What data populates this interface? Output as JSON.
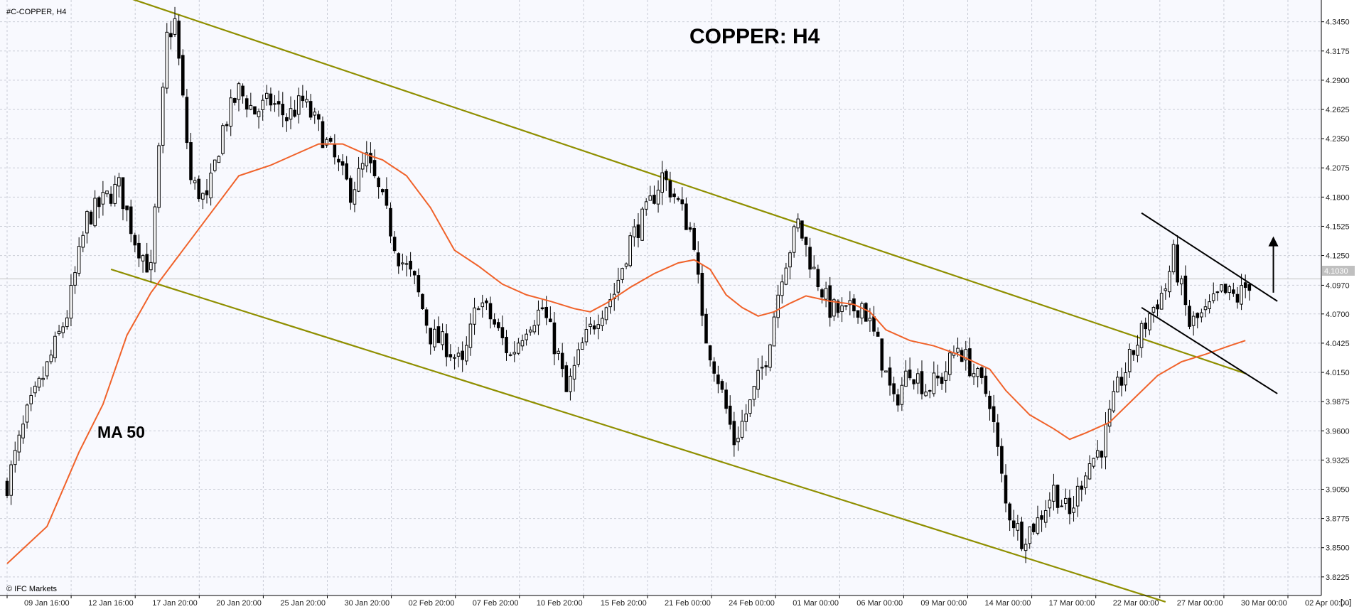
{
  "symbol_label": "#C-COPPER, H4",
  "watermark": "© IFC Markets",
  "corner_mark": "[...]",
  "annotations": {
    "title": "COPPER: H4",
    "ma_label": "MA 50"
  },
  "colors": {
    "background": "#f8f9fe",
    "grid": "#c9ccd6",
    "candle": "#000000",
    "ma": "#f0622a",
    "channel": "#8f8f00",
    "pattern": "#000000",
    "price_tag": "#c0c0c0",
    "bid_line": "#c0c0c0"
  },
  "chart_data": {
    "type": "candlestick",
    "title": "COPPER: H4",
    "ylim": [
      3.805,
      4.3655
    ],
    "y_ticks": [
      "4.3450",
      "4.3175",
      "4.2900",
      "4.2625",
      "4.2350",
      "4.2075",
      "4.1800",
      "4.1525",
      "4.1250",
      "4.0970",
      "4.0700",
      "4.0425",
      "4.0150",
      "3.9875",
      "3.9600",
      "3.9325",
      "3.9050",
      "3.8775",
      "3.8500",
      "3.8225"
    ],
    "x_ticks": [
      "09 Jan 16:00",
      "12 Jan 16:00",
      "17 Jan 20:00",
      "20 Jan 20:00",
      "25 Jan 20:00",
      "30 Jan 20:00",
      "02 Feb 20:00",
      "07 Feb 20:00",
      "10 Feb 20:00",
      "15 Feb 20:00",
      "21 Feb 00:00",
      "24 Feb 00:00",
      "01 Mar 00:00",
      "06 Mar 00:00",
      "09 Mar 00:00",
      "14 Mar 00:00",
      "17 Mar 00:00",
      "22 Mar 00:00",
      "27 Mar 00:00",
      "30 Mar 00:00",
      "02 Apr 00:00"
    ],
    "current_price": "4.1030",
    "close_path": [
      [
        0,
        3.91
      ],
      [
        5,
        3.975
      ],
      [
        10,
        4.02
      ],
      [
        15,
        4.07
      ],
      [
        20,
        4.16
      ],
      [
        25,
        4.18
      ],
      [
        28,
        4.19
      ],
      [
        32,
        4.14
      ],
      [
        36,
        4.11
      ],
      [
        40,
        4.33
      ],
      [
        42,
        4.345
      ],
      [
        46,
        4.195
      ],
      [
        50,
        4.175
      ],
      [
        54,
        4.245
      ],
      [
        58,
        4.28
      ],
      [
        62,
        4.26
      ],
      [
        66,
        4.27
      ],
      [
        70,
        4.255
      ],
      [
        74,
        4.27
      ],
      [
        78,
        4.245
      ],
      [
        82,
        4.215
      ],
      [
        86,
        4.185
      ],
      [
        90,
        4.215
      ],
      [
        94,
        4.175
      ],
      [
        98,
        4.125
      ],
      [
        102,
        4.1
      ],
      [
        106,
        4.05
      ],
      [
        110,
        4.04
      ],
      [
        114,
        4.02
      ],
      [
        118,
        4.085
      ],
      [
        122,
        4.06
      ],
      [
        126,
        4.03
      ],
      [
        130,
        4.06
      ],
      [
        134,
        4.075
      ],
      [
        138,
        4.03
      ],
      [
        140,
        3.995
      ],
      [
        144,
        4.04
      ],
      [
        148,
        4.07
      ],
      [
        152,
        4.09
      ],
      [
        156,
        4.14
      ],
      [
        160,
        4.165
      ],
      [
        164,
        4.2
      ],
      [
        168,
        4.175
      ],
      [
        172,
        4.14
      ],
      [
        174,
        4.06
      ],
      [
        178,
        4.01
      ],
      [
        182,
        3.95
      ],
      [
        186,
        3.985
      ],
      [
        190,
        4.03
      ],
      [
        194,
        4.11
      ],
      [
        198,
        4.155
      ],
      [
        202,
        4.11
      ],
      [
        206,
        4.075
      ],
      [
        210,
        4.07
      ],
      [
        214,
        4.08
      ],
      [
        218,
        4.04
      ],
      [
        222,
        3.985
      ],
      [
        226,
        4.02
      ],
      [
        230,
        4.0
      ],
      [
        234,
        4.01
      ],
      [
        238,
        4.04
      ],
      [
        242,
        4.015
      ],
      [
        246,
        3.99
      ],
      [
        250,
        3.89
      ],
      [
        254,
        3.86
      ],
      [
        258,
        3.875
      ],
      [
        262,
        3.905
      ],
      [
        266,
        3.88
      ],
      [
        270,
        3.925
      ],
      [
        274,
        3.945
      ],
      [
        278,
        4.0
      ],
      [
        282,
        4.035
      ],
      [
        286,
        4.07
      ],
      [
        290,
        4.095
      ],
      [
        292,
        4.125
      ],
      [
        296,
        4.06
      ],
      [
        300,
        4.07
      ],
      [
        304,
        4.09
      ],
      [
        308,
        4.085
      ],
      [
        311,
        4.1
      ]
    ],
    "ma50": [
      [
        0,
        3.835
      ],
      [
        10,
        3.87
      ],
      [
        18,
        3.94
      ],
      [
        24,
        3.985
      ],
      [
        30,
        4.05
      ],
      [
        36,
        4.09
      ],
      [
        42,
        4.12
      ],
      [
        50,
        4.16
      ],
      [
        58,
        4.2
      ],
      [
        66,
        4.21
      ],
      [
        72,
        4.22
      ],
      [
        78,
        4.23
      ],
      [
        84,
        4.23
      ],
      [
        90,
        4.22
      ],
      [
        94,
        4.215
      ],
      [
        100,
        4.2
      ],
      [
        106,
        4.17
      ],
      [
        112,
        4.13
      ],
      [
        118,
        4.115
      ],
      [
        124,
        4.098
      ],
      [
        130,
        4.088
      ],
      [
        136,
        4.082
      ],
      [
        142,
        4.075
      ],
      [
        146,
        4.072
      ],
      [
        150,
        4.08
      ],
      [
        156,
        4.095
      ],
      [
        162,
        4.108
      ],
      [
        168,
        4.118
      ],
      [
        172,
        4.121
      ],
      [
        176,
        4.112
      ],
      [
        180,
        4.088
      ],
      [
        184,
        4.076
      ],
      [
        188,
        4.068
      ],
      [
        192,
        4.072
      ],
      [
        196,
        4.08
      ],
      [
        200,
        4.087
      ],
      [
        206,
        4.082
      ],
      [
        212,
        4.079
      ],
      [
        216,
        4.072
      ],
      [
        220,
        4.055
      ],
      [
        226,
        4.045
      ],
      [
        232,
        4.04
      ],
      [
        238,
        4.032
      ],
      [
        242,
        4.025
      ],
      [
        246,
        4.018
      ],
      [
        250,
        3.998
      ],
      [
        256,
        3.975
      ],
      [
        262,
        3.962
      ],
      [
        266,
        3.952
      ],
      [
        270,
        3.958
      ],
      [
        276,
        3.968
      ],
      [
        282,
        3.99
      ],
      [
        288,
        4.012
      ],
      [
        294,
        4.025
      ],
      [
        300,
        4.032
      ],
      [
        306,
        4.04
      ],
      [
        310,
        4.045
      ]
    ],
    "channel_upper": [
      [
        30,
        4.368
      ],
      [
        310,
        4.014
      ]
    ],
    "channel_lower": [
      [
        26,
        4.112
      ],
      [
        290,
        3.799
      ]
    ],
    "pattern_upper": [
      [
        284,
        4.165
      ],
      [
        318,
        4.082
      ]
    ],
    "pattern_lower": [
      [
        284,
        4.076
      ],
      [
        318,
        3.995
      ]
    ],
    "arrow": {
      "from": [
        317,
        4.09
      ],
      "to": [
        317,
        4.143
      ]
    }
  }
}
